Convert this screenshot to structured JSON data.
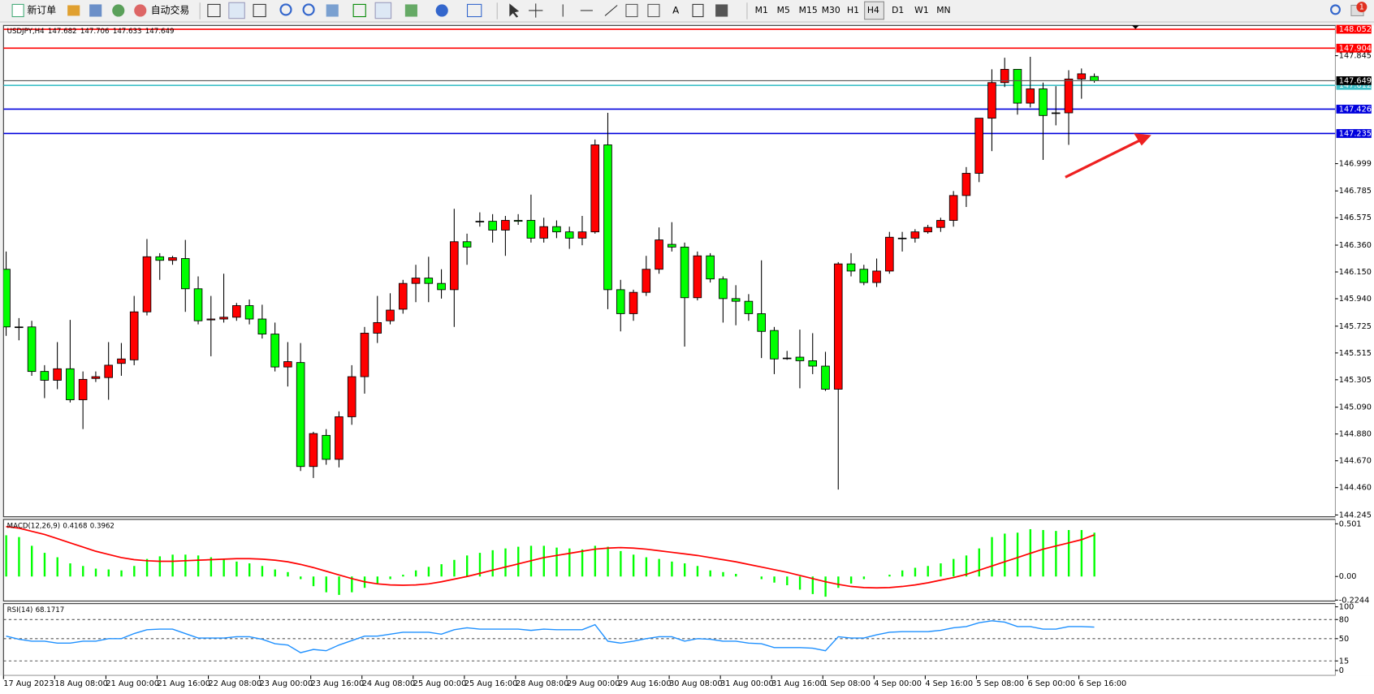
{
  "toolbar": {
    "new_order": "新订单",
    "auto_trading": "自动交易",
    "text_tool": "A",
    "timeframes": [
      "M1",
      "M5",
      "M15",
      "M30",
      "H1",
      "H4",
      "D1",
      "W1",
      "MN"
    ],
    "notification_count": "1"
  },
  "chart_data": [
    {
      "type": "candlestick",
      "title": "USDJPY,H4",
      "up_color": "#ff0000",
      "down_color": "#00ff00",
      "categories": [
        "17 Aug 2023",
        null,
        null,
        null,
        "18 Aug 08:00",
        null,
        null,
        null,
        "21 Aug 00:00",
        null,
        null,
        null,
        "21 Aug 16:00",
        null,
        null,
        null,
        "22 Aug 08:00",
        null,
        null,
        null,
        "23 Aug 00:00",
        null,
        null,
        null,
        "23 Aug 16:00",
        null,
        null,
        null,
        "24 Aug 08:00",
        null,
        null,
        null,
        "25 Aug 00:00",
        null,
        null,
        null,
        "25 Aug 16:00",
        null,
        null,
        null,
        "28 Aug 08:00",
        null,
        null,
        null,
        "29 Aug 00:00",
        null,
        null,
        null,
        "29 Aug 16:00",
        null,
        null,
        null,
        "30 Aug 08:00",
        null,
        null,
        null,
        "31 Aug 00:00",
        null,
        null,
        null,
        "31 Aug 16:00",
        null,
        null,
        null,
        "1 Sep 08:00",
        null,
        null,
        null,
        "4 Sep 00:00",
        null,
        null,
        null,
        "4 Sep 16:00",
        null,
        null,
        null,
        "5 Sep 08:00",
        null,
        null,
        null,
        "6 Sep 00:00",
        null,
        null,
        null,
        "6 Sep 16:00",
        null
      ],
      "open": [
        146.171,
        145.719,
        145.719,
        145.37,
        145.301,
        145.391,
        145.148,
        145.315,
        145.322,
        145.433,
        145.461,
        145.837,
        146.269,
        146.241,
        146.255,
        146.018,
        145.774,
        145.781,
        145.795,
        145.886,
        145.781,
        145.663,
        145.405,
        145.44,
        144.625,
        144.869,
        144.681,
        145.015,
        145.329,
        145.67,
        145.767,
        145.858,
        146.06,
        146.102,
        146.06,
        146.011,
        146.387,
        146.547,
        146.547,
        146.478,
        146.554,
        146.554,
        146.415,
        146.505,
        146.464,
        146.415,
        146.464,
        147.146,
        146.011,
        145.823,
        145.99,
        146.171,
        146.366,
        146.345,
        145.948,
        146.276,
        146.095,
        145.941,
        145.92,
        145.823,
        145.691,
        145.475,
        145.482,
        145.454,
        145.412,
        145.231,
        146.213,
        146.171,
        146.067,
        146.157,
        146.415,
        146.415,
        146.464,
        146.499,
        146.554,
        146.749,
        146.923,
        147.355,
        147.634,
        147.738,
        147.473,
        147.585,
        147.397,
        147.397,
        147.662,
        147.682
      ],
      "high": [
        146.31,
        145.788,
        145.767,
        145.419,
        145.6,
        145.774,
        145.37,
        145.37,
        145.6,
        145.593,
        145.962,
        146.408,
        146.297,
        146.276,
        146.401,
        146.115,
        145.962,
        146.136,
        145.907,
        145.934,
        145.893,
        145.753,
        145.6,
        145.593,
        144.897,
        144.918,
        145.057,
        145.419,
        145.719,
        145.962,
        145.983,
        146.088,
        146.206,
        146.269,
        146.171,
        146.645,
        146.45,
        146.617,
        146.603,
        146.589,
        146.603,
        146.756,
        146.575,
        146.554,
        146.505,
        146.589,
        147.188,
        147.397,
        146.088,
        146.011,
        146.276,
        146.499,
        146.54,
        146.38,
        146.31,
        146.297,
        146.115,
        146.046,
        145.976,
        146.241,
        145.719,
        145.531,
        145.698,
        145.67,
        145.524,
        146.227,
        146.297,
        146.206,
        146.255,
        146.464,
        146.464,
        146.485,
        146.519,
        146.575,
        146.784,
        146.972,
        147.355,
        147.738,
        147.829,
        147.738,
        147.836,
        147.634,
        147.606,
        147.731,
        147.745,
        147.706
      ],
      "low": [
        145.649,
        145.614,
        145.336,
        145.161,
        145.231,
        145.127,
        144.918,
        145.287,
        145.148,
        145.336,
        145.419,
        145.809,
        146.088,
        146.206,
        145.837,
        145.739,
        145.489,
        145.753,
        145.767,
        145.739,
        145.628,
        145.37,
        145.252,
        144.59,
        144.535,
        144.639,
        144.618,
        144.952,
        145.196,
        145.593,
        145.739,
        145.823,
        145.913,
        145.913,
        145.941,
        145.719,
        146.206,
        146.505,
        146.38,
        146.276,
        146.519,
        146.38,
        146.38,
        146.415,
        146.331,
        146.359,
        146.45,
        145.858,
        145.684,
        145.767,
        145.962,
        146.136,
        146.31,
        145.565,
        145.927,
        146.067,
        145.753,
        145.732,
        145.767,
        145.475,
        145.349,
        145.461,
        145.238,
        145.349,
        145.217,
        144.444,
        146.115,
        146.046,
        146.032,
        146.136,
        146.31,
        146.38,
        146.45,
        146.464,
        146.505,
        146.659,
        146.854,
        147.097,
        147.599,
        147.383,
        147.439,
        147.028,
        147.299,
        147.146,
        147.508,
        147.633
      ],
      "close": [
        145.719,
        145.719,
        145.37,
        145.301,
        145.391,
        145.148,
        145.308,
        145.329,
        145.419,
        145.468,
        145.837,
        146.269,
        146.241,
        146.262,
        146.018,
        145.767,
        145.781,
        145.795,
        145.886,
        145.781,
        145.663,
        145.405,
        145.447,
        144.625,
        144.883,
        144.681,
        145.015,
        145.329,
        145.67,
        145.753,
        145.851,
        146.06,
        146.102,
        146.06,
        146.011,
        146.387,
        146.345,
        146.547,
        146.478,
        146.554,
        146.547,
        146.415,
        146.505,
        146.464,
        146.415,
        146.464,
        147.146,
        146.011,
        145.823,
        145.99,
        146.171,
        146.401,
        146.345,
        145.948,
        146.276,
        146.095,
        145.941,
        145.92,
        145.823,
        145.684,
        145.468,
        145.475,
        145.454,
        145.412,
        145.231,
        146.213,
        146.157,
        146.067,
        146.157,
        146.422,
        146.415,
        146.464,
        146.499,
        146.554,
        146.749,
        146.923,
        147.355,
        147.634,
        147.738,
        147.473,
        147.585,
        147.376,
        147.397,
        147.662,
        147.703,
        147.649
      ],
      "ylim": [
        144.231,
        148.082
      ],
      "yticks": [
        147.845,
        146.999,
        146.785,
        146.575,
        {
          "value": 146.36,
          "label": "146.360"
        },
        {
          "value": 146.15,
          "label": "146.150"
        },
        {
          "value": 145.94,
          "label": "145.940"
        },
        145.725,
        145.515,
        145.305,
        {
          "value": 145.09,
          "label": "145.090"
        },
        {
          "value": 144.88,
          "label": "144.880"
        },
        {
          "value": 144.67,
          "label": "144.670"
        },
        {
          "value": 144.46,
          "label": "144.460"
        },
        144.245
      ],
      "hlines": [
        {
          "value": 148.052,
          "color": "#ff0000"
        },
        {
          "value": 147.904,
          "color": "#ff0000"
        },
        {
          "value": 147.612,
          "color": "#40c0c8"
        },
        {
          "value": 147.426,
          "color": "#0000dd"
        },
        {
          "value": 147.235,
          "color": "#0000dd"
        }
      ]
    },
    {
      "type": "macd",
      "title": "MACD(12,26,9)",
      "series": [
        {
          "color": "#00ff00",
          "values": [
            0.392,
            0.375,
            0.292,
            0.225,
            0.183,
            0.125,
            0.1,
            0.075,
            0.067,
            0.058,
            0.1,
            0.167,
            0.192,
            0.208,
            0.208,
            0.2,
            0.183,
            0.167,
            0.142,
            0.125,
            0.1,
            0.067,
            0.042,
            -0.025,
            -0.092,
            -0.15,
            -0.175,
            -0.15,
            -0.108,
            -0.067,
            -0.025,
            0.017,
            0.058,
            0.092,
            0.117,
            0.158,
            0.2,
            0.225,
            0.25,
            0.267,
            0.283,
            0.292,
            0.292,
            0.275,
            0.267,
            0.258,
            0.292,
            0.283,
            0.242,
            0.208,
            0.183,
            0.167,
            0.142,
            0.125,
            0.1,
            0.058,
            0.042,
            0.025,
            0,
            -0.025,
            -0.058,
            -0.083,
            -0.125,
            -0.167,
            -0.192,
            -0.108,
            -0.067,
            -0.025,
            0,
            0.017,
            0.058,
            0.083,
            0.1,
            0.125,
            0.167,
            0.2,
            0.267,
            0.375,
            0.408,
            0.417,
            0.45,
            0.442,
            0.433,
            0.442,
            0.442,
            0.4168
          ]
        },
        {
          "color": "#ff0000",
          "values": [
            0.475,
            0.46,
            0.43,
            0.4,
            0.36,
            0.32,
            0.28,
            0.24,
            0.21,
            0.18,
            0.16,
            0.15,
            0.145,
            0.145,
            0.15,
            0.155,
            0.16,
            0.165,
            0.17,
            0.17,
            0.165,
            0.155,
            0.14,
            0.115,
            0.085,
            0.05,
            0.015,
            -0.02,
            -0.05,
            -0.07,
            -0.08,
            -0.083,
            -0.08,
            -0.07,
            -0.05,
            -0.025,
            0,
            0.03,
            0.06,
            0.09,
            0.12,
            0.15,
            0.18,
            0.2,
            0.22,
            0.24,
            0.26,
            0.27,
            0.275,
            0.27,
            0.26,
            0.245,
            0.23,
            0.215,
            0.2,
            0.18,
            0.16,
            0.14,
            0.115,
            0.09,
            0.065,
            0.04,
            0.01,
            -0.02,
            -0.05,
            -0.075,
            -0.095,
            -0.105,
            -0.108,
            -0.105,
            -0.095,
            -0.08,
            -0.06,
            -0.035,
            -0.01,
            0.02,
            0.06,
            0.1,
            0.14,
            0.18,
            0.22,
            0.26,
            0.29,
            0.32,
            0.35,
            0.3962
          ]
        }
      ],
      "ylim": [
        -0.233,
        0.543
      ],
      "yticks": [
        0.501,
        {
          "value": 0,
          "label": "0.00"
        },
        -0.2244
      ]
    },
    {
      "type": "line",
      "title": "RSI(14)",
      "series": [
        {
          "color": "#1e90ff",
          "values": [
            54,
            49,
            46,
            46,
            43,
            43,
            46,
            46,
            50,
            50,
            58,
            64,
            65,
            65,
            58,
            51,
            51,
            51,
            53,
            53,
            49,
            42,
            40,
            28,
            33,
            31,
            40,
            47,
            54,
            54,
            57,
            60,
            60,
            60,
            57,
            64,
            67,
            65,
            65,
            65,
            65,
            63,
            65,
            64,
            64,
            64,
            72,
            46,
            43,
            46,
            50,
            53,
            53,
            46,
            50,
            49,
            46,
            46,
            43,
            42,
            36,
            36,
            36,
            35,
            31,
            53,
            51,
            51,
            56,
            60,
            61,
            61,
            61,
            63,
            67,
            69,
            75,
            78,
            76,
            69,
            69,
            65,
            65,
            69,
            69,
            68.1717
          ]
        }
      ],
      "ylim": [
        -8,
        105
      ],
      "yticks": [
        100,
        80,
        50,
        15,
        0
      ],
      "levels": [
        80,
        50,
        15
      ]
    }
  ]
}
